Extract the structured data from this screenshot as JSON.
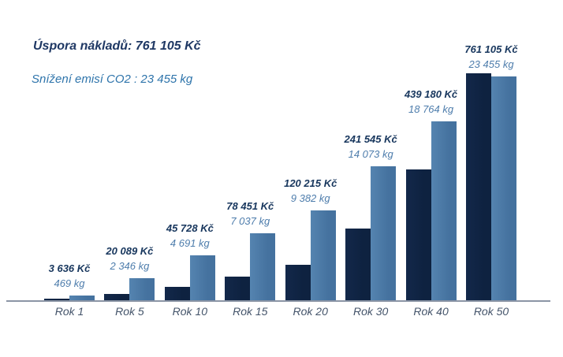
{
  "chart_data": {
    "type": "bar",
    "title": "Úspora nákladů: 761 105 Kč",
    "subtitle": "Snížení emisí CO2 : 23 455 kg",
    "categories": [
      "Rok 1",
      "Rok 5",
      "Rok 10",
      "Rok 15",
      "Rok 20",
      "Rok 30",
      "Rok 40",
      "Rok 50"
    ],
    "series": [
      {
        "name": "Úspora nákladů",
        "unit": "Kč",
        "values": [
          3636,
          20089,
          45728,
          78451,
          120215,
          241545,
          439180,
          761105
        ],
        "labels": [
          "3 636 Kč",
          "20 089 Kč",
          "45 728 Kč",
          "78 451 Kč",
          "120 215 Kč",
          "241 545 Kč",
          "439 180 Kč",
          "761 105 Kč"
        ],
        "bar_color": "#13284a",
        "label_color": "#17365d"
      },
      {
        "name": "Snížení emisí CO2",
        "unit": "kg",
        "values": [
          469,
          2346,
          4691,
          7037,
          9382,
          14073,
          18764,
          23455
        ],
        "labels": [
          "469 kg",
          "2 346 kg",
          "4 691 kg",
          "7 037 kg",
          "9 382 kg",
          "14 073 kg",
          "18 764 kg",
          "23 455 kg"
        ],
        "bar_color": "#45729f",
        "label_color": "#4e7dac"
      }
    ],
    "xlabel": "",
    "ylabel": "",
    "legend": "none",
    "gridlines": false,
    "value_labels_position": "above-bars",
    "colors": {
      "title": "#1f3864",
      "subtitle": "#2e74ab",
      "tick_labels": "#44546a",
      "axis_line": "#8b95a5",
      "background": "#ffffff"
    }
  }
}
